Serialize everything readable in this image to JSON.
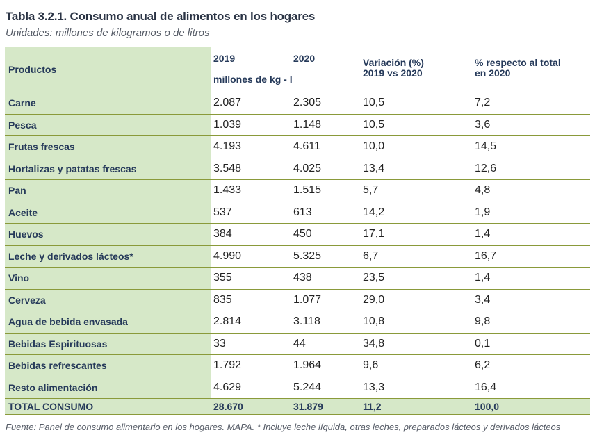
{
  "title": "Tabla 3.2.1. Consumo anual de alimentos en los hogares",
  "subtitle": "Unidades: millones de kilogramos o de litros",
  "header": {
    "productos": "Productos",
    "y2019": "2019",
    "y2020": "2020",
    "units": "millones de kg - l",
    "variacion_line1": "Variación (%)",
    "variacion_line2": "2019 vs 2020",
    "pct_line1": "% respecto al total",
    "pct_line2": "en 2020"
  },
  "rows": [
    {
      "producto": "Carne",
      "v2019": "2.087",
      "v2020": "2.305",
      "variacion": "10,5",
      "pct": "7,2"
    },
    {
      "producto": "Pesca",
      "v2019": "1.039",
      "v2020": "1.148",
      "variacion": "10,5",
      "pct": "3,6"
    },
    {
      "producto": "Frutas frescas",
      "v2019": "4.193",
      "v2020": "4.611",
      "variacion": "10,0",
      "pct": "14,5"
    },
    {
      "producto": "Hortalizas y patatas frescas",
      "v2019": "3.548",
      "v2020": "4.025",
      "variacion": "13,4",
      "pct": "12,6"
    },
    {
      "producto": "Pan",
      "v2019": "1.433",
      "v2020": "1.515",
      "variacion": "5,7",
      "pct": "4,8"
    },
    {
      "producto": "Aceite",
      "v2019": "537",
      "v2020": "613",
      "variacion": "14,2",
      "pct": "1,9"
    },
    {
      "producto": "Huevos",
      "v2019": "384",
      "v2020": "450",
      "variacion": "17,1",
      "pct": "1,4"
    },
    {
      "producto": "Leche y derivados lácteos*",
      "v2019": "4.990",
      "v2020": "5.325",
      "variacion": "6,7",
      "pct": "16,7"
    },
    {
      "producto": "Vino",
      "v2019": "355",
      "v2020": "438",
      "variacion": "23,5",
      "pct": "1,4"
    },
    {
      "producto": "Cerveza",
      "v2019": "835",
      "v2020": "1.077",
      "variacion": "29,0",
      "pct": "3,4"
    },
    {
      "producto": "Agua de bebida envasada",
      "v2019": "2.814",
      "v2020": "3.118",
      "variacion": "10,8",
      "pct": "9,8"
    },
    {
      "producto": "Bebidas Espirituosas",
      "v2019": "33",
      "v2020": "44",
      "variacion": "34,8",
      "pct": "0,1"
    },
    {
      "producto": "Bebidas refrescantes",
      "v2019": "1.792",
      "v2020": "1.964",
      "variacion": "9,6",
      "pct": "6,2"
    },
    {
      "producto": "Resto alimentación",
      "v2019": "4.629",
      "v2020": "5.244",
      "variacion": "13,3",
      "pct": "16,4"
    }
  ],
  "total": {
    "producto": "TOTAL CONSUMO",
    "v2019": "28.670",
    "v2020": "31.879",
    "variacion": "11,2",
    "pct": "100,0"
  },
  "footnote": "Fuente: Panel de consumo alimentario en los hogares. MAPA. * Incluye leche líquida, otras leches, preparados lácteos y derivados lácteos",
  "colors": {
    "label_fill": "#d6e8c8",
    "rule": "#8a9a3a",
    "header_text": "#263a5a"
  }
}
